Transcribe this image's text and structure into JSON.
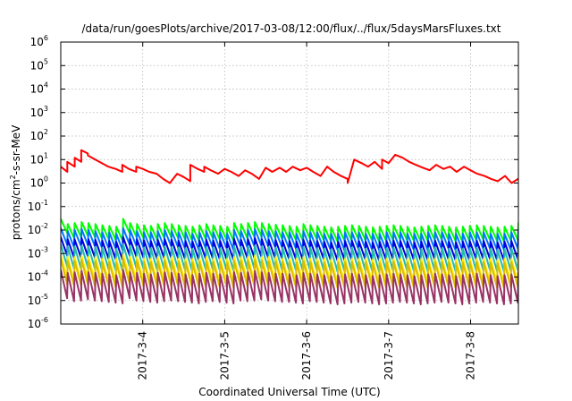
{
  "chart_data": {
    "type": "line",
    "title": "/data/run/goesPlots/archive/2017-03-08/12:00/flux/../flux/5daysMarsFluxes.txt",
    "xlabel": "Coordinated Universal Time (UTC)",
    "ylabel_base": "protons/cm",
    "ylabel_sup": "2",
    "ylabel_rest": "-s-sr-MeV",
    "y_scale": "log",
    "ylim": [
      1e-06,
      1000000.0
    ],
    "xlim_days": [
      "2017-03-03 00:00",
      "2017-03-08 14:00"
    ],
    "x_ticks": [
      {
        "day": 1,
        "label": "2017-3-4"
      },
      {
        "day": 2,
        "label": "2017-3-5"
      },
      {
        "day": 3,
        "label": "2017-3-6"
      },
      {
        "day": 4,
        "label": "2017-3-7"
      },
      {
        "day": 5,
        "label": "2017-3-8"
      }
    ],
    "y_ticks": [
      {
        "exp": -6,
        "label": "-6"
      },
      {
        "exp": -5,
        "label": "-5"
      },
      {
        "exp": -4,
        "label": "-4"
      },
      {
        "exp": -3,
        "label": "-3"
      },
      {
        "exp": -2,
        "label": "-2"
      },
      {
        "exp": -1,
        "label": "-1"
      },
      {
        "exp": 0,
        "label": "0"
      },
      {
        "exp": 1,
        "label": "1"
      },
      {
        "exp": 2,
        "label": "2"
      },
      {
        "exp": 3,
        "label": "3"
      },
      {
        "exp": 4,
        "label": "4"
      },
      {
        "exp": 5,
        "label": "5"
      },
      {
        "exp": 6,
        "label": "6"
      }
    ],
    "grid": true,
    "series": [
      {
        "color": "#ff0000",
        "x": [
          0.0,
          0.08,
          0.08,
          0.17,
          0.17,
          0.25,
          0.25,
          0.33,
          0.33,
          0.42,
          0.5,
          0.58,
          0.67,
          0.75,
          0.75,
          0.83,
          0.92,
          0.92,
          1.0,
          1.08,
          1.17,
          1.25,
          1.33,
          1.42,
          1.5,
          1.58,
          1.58,
          1.67,
          1.75,
          1.75,
          1.83,
          1.92,
          2.0,
          2.08,
          2.17,
          2.25,
          2.33,
          2.42,
          2.5,
          2.58,
          2.67,
          2.75,
          2.83,
          2.92,
          3.0,
          3.08,
          3.17,
          3.25,
          3.33,
          3.42,
          3.5,
          3.5,
          3.58,
          3.67,
          3.75,
          3.83,
          3.92,
          3.92,
          4.0,
          4.08,
          4.17,
          4.25,
          4.33,
          4.42,
          4.5,
          4.58,
          4.67,
          4.75,
          4.83,
          4.92,
          5.0,
          5.08,
          5.17,
          5.25,
          5.33,
          5.42,
          5.5,
          5.58
        ],
        "y": [
          5,
          3,
          8,
          5,
          12,
          8,
          25,
          18,
          15,
          10,
          7,
          5,
          4,
          3,
          6,
          4,
          3,
          5,
          4,
          3,
          2.5,
          1.5,
          1,
          2.5,
          1.8,
          1.2,
          6,
          4,
          3,
          5,
          3.5,
          2.5,
          4,
          3,
          2,
          3.5,
          2.5,
          1.5,
          4.5,
          3,
          4.5,
          3,
          5,
          3.5,
          4.5,
          3,
          2,
          5,
          3,
          2,
          1.5,
          1,
          10,
          7,
          5,
          8,
          4,
          10,
          7,
          16,
          12,
          8,
          6,
          4.5,
          3.5,
          6,
          4,
          5,
          3,
          5,
          3.5,
          2.5,
          2,
          1.5,
          1.2,
          2,
          1,
          1.5
        ]
      },
      {
        "color": "#00ff00",
        "fluxes": [
          0.03,
          0.018,
          0.02,
          0.022,
          0.02,
          0.018,
          0.016,
          0.015,
          0.014,
          0.03,
          0.02,
          0.018,
          0.016,
          0.015,
          0.018,
          0.02,
          0.018,
          0.016,
          0.015,
          0.014,
          0.016,
          0.018,
          0.016,
          0.015,
          0.014,
          0.02,
          0.018,
          0.02,
          0.022,
          0.02,
          0.018,
          0.017,
          0.016,
          0.015,
          0.014,
          0.018,
          0.016,
          0.015,
          0.014,
          0.013,
          0.014,
          0.015,
          0.016,
          0.015,
          0.014,
          0.013,
          0.014,
          0.015,
          0.016,
          0.015,
          0.014,
          0.013,
          0.014,
          0.015,
          0.016,
          0.015,
          0.014,
          0.013,
          0.014,
          0.015,
          0.016,
          0.015,
          0.014,
          0.013,
          0.014,
          0.015,
          0.02
        ],
        "amp": 4
      },
      {
        "color": "#0077ff",
        "fluxes": [
          0.012,
          0.009,
          0.01,
          0.011,
          0.01,
          0.009,
          0.008,
          0.008,
          0.007,
          0.012,
          0.01,
          0.009,
          0.008,
          0.008,
          0.009,
          0.01,
          0.009,
          0.008,
          0.008,
          0.007,
          0.008,
          0.009,
          0.008,
          0.008,
          0.007,
          0.01,
          0.009,
          0.01,
          0.011,
          0.01,
          0.009,
          0.009,
          0.008,
          0.008,
          0.007,
          0.009,
          0.008,
          0.008,
          0.007,
          0.007,
          0.007,
          0.008,
          0.008,
          0.008,
          0.007,
          0.007,
          0.007,
          0.008,
          0.008,
          0.008,
          0.007,
          0.007,
          0.007,
          0.008,
          0.008,
          0.008,
          0.007,
          0.007,
          0.007,
          0.008,
          0.008,
          0.008,
          0.007,
          0.007,
          0.007,
          0.008,
          0.01
        ],
        "amp": 5
      },
      {
        "color": "#0000dd",
        "fluxes": [
          0.005,
          0.004,
          0.004,
          0.0045,
          0.004,
          0.0038,
          0.0035,
          0.0034,
          0.0032,
          0.005,
          0.0042,
          0.004,
          0.0036,
          0.0034,
          0.0038,
          0.004,
          0.0038,
          0.0035,
          0.0034,
          0.0032,
          0.0035,
          0.0038,
          0.0035,
          0.0034,
          0.0032,
          0.0042,
          0.0038,
          0.004,
          0.0045,
          0.004,
          0.0038,
          0.0037,
          0.0035,
          0.0034,
          0.0032,
          0.0038,
          0.0035,
          0.0034,
          0.0032,
          0.003,
          0.0032,
          0.0034,
          0.0035,
          0.0034,
          0.0032,
          0.003,
          0.0032,
          0.0034,
          0.0035,
          0.0034,
          0.0032,
          0.003,
          0.0032,
          0.0034,
          0.0035,
          0.0034,
          0.0032,
          0.003,
          0.0032,
          0.0034,
          0.0035,
          0.0034,
          0.0032,
          0.003,
          0.0032,
          0.0034,
          0.004
        ],
        "amp": 6
      },
      {
        "color": "#22bbaa",
        "fluxes": [
          0.0025,
          0.002,
          0.002,
          0.0022,
          0.002,
          0.0019,
          0.0018,
          0.0017,
          0.0016,
          0.0025,
          0.0021,
          0.002,
          0.0018,
          0.0017,
          0.0019,
          0.002,
          0.0019,
          0.0018,
          0.0017,
          0.0016,
          0.0018,
          0.0019,
          0.0018,
          0.0017,
          0.0016,
          0.0021,
          0.0019,
          0.002,
          0.0022,
          0.002,
          0.0019,
          0.0018,
          0.0018,
          0.0017,
          0.0016,
          0.0019,
          0.0018,
          0.0017,
          0.0016,
          0.0015,
          0.0016,
          0.0017,
          0.0018,
          0.0017,
          0.0016,
          0.0015,
          0.0016,
          0.0017,
          0.0018,
          0.0017,
          0.0016,
          0.0015,
          0.0016,
          0.0017,
          0.0018,
          0.0017,
          0.0016,
          0.0015,
          0.0016,
          0.0017,
          0.0018,
          0.0017,
          0.0016,
          0.0015,
          0.0016,
          0.0017,
          0.002
        ],
        "amp": 9
      },
      {
        "color": "#ffee00",
        "fluxes": [
          0.0009,
          0.0007,
          0.0007,
          0.0008,
          0.0007,
          0.0007,
          0.0006,
          0.0006,
          0.0006,
          0.0009,
          0.0007,
          0.0007,
          0.0006,
          0.0006,
          0.0007,
          0.0007,
          0.0007,
          0.0006,
          0.0006,
          0.0006,
          0.0006,
          0.0007,
          0.0006,
          0.0006,
          0.0006,
          0.0007,
          0.0007,
          0.0007,
          0.0008,
          0.0007,
          0.0007,
          0.0007,
          0.0006,
          0.0006,
          0.0006,
          0.0007,
          0.0006,
          0.0006,
          0.0006,
          0.00055,
          0.0006,
          0.0006,
          0.0006,
          0.0006,
          0.0006,
          0.00055,
          0.0006,
          0.0006,
          0.0006,
          0.0006,
          0.0006,
          0.00055,
          0.0006,
          0.0006,
          0.0006,
          0.0006,
          0.0006,
          0.00055,
          0.0006,
          0.0006,
          0.0006,
          0.0006,
          0.0006,
          0.00055,
          0.0006,
          0.0006,
          0.0007
        ],
        "amp": 10
      },
      {
        "color": "#ddbb00",
        "fluxes": [
          0.0006,
          0.0005,
          0.0005,
          0.00055,
          0.0005,
          0.00048,
          0.00045,
          0.00044,
          0.00042,
          0.0006,
          0.0005,
          0.0005,
          0.00045,
          0.00044,
          0.00048,
          0.0005,
          0.00048,
          0.00045,
          0.00044,
          0.00042,
          0.00045,
          0.00048,
          0.00045,
          0.00044,
          0.00042,
          0.0005,
          0.00048,
          0.0005,
          0.00055,
          0.0005,
          0.00048,
          0.00047,
          0.00045,
          0.00044,
          0.00042,
          0.00048,
          0.00045,
          0.00044,
          0.00042,
          0.0004,
          0.00042,
          0.00044,
          0.00045,
          0.00044,
          0.00042,
          0.0004,
          0.00042,
          0.00044,
          0.00045,
          0.00044,
          0.00042,
          0.0004,
          0.00042,
          0.00044,
          0.00045,
          0.00044,
          0.00042,
          0.0004,
          0.00042,
          0.00044,
          0.00045,
          0.00044,
          0.00042,
          0.0004,
          0.00042,
          0.00044,
          0.0005
        ],
        "amp": 12
      },
      {
        "color": "#993366",
        "fluxes": [
          0.0002,
          0.00015,
          0.00016,
          0.00018,
          0.00016,
          0.00015,
          0.00014,
          0.00013,
          0.00012,
          0.0002,
          0.00016,
          0.00015,
          0.00014,
          0.00013,
          0.00015,
          0.00016,
          0.00015,
          0.00014,
          0.00013,
          0.00012,
          0.00014,
          0.00015,
          0.00014,
          0.00013,
          0.00012,
          0.00016,
          0.00015,
          0.00016,
          0.00018,
          0.00016,
          0.00015,
          0.00014,
          0.00014,
          0.00013,
          0.00012,
          0.00015,
          0.00014,
          0.00013,
          0.00012,
          0.00011,
          0.00012,
          0.00013,
          0.00014,
          0.00013,
          0.00012,
          0.00011,
          0.00012,
          0.00013,
          0.00014,
          0.00013,
          0.00012,
          0.00011,
          0.00012,
          0.00013,
          0.00014,
          0.00013,
          0.00012,
          0.00011,
          0.00012,
          0.00013,
          0.00014,
          0.00013,
          0.00012,
          0.00011,
          0.00012,
          0.00013,
          0.00015
        ],
        "amp": 16
      }
    ]
  }
}
